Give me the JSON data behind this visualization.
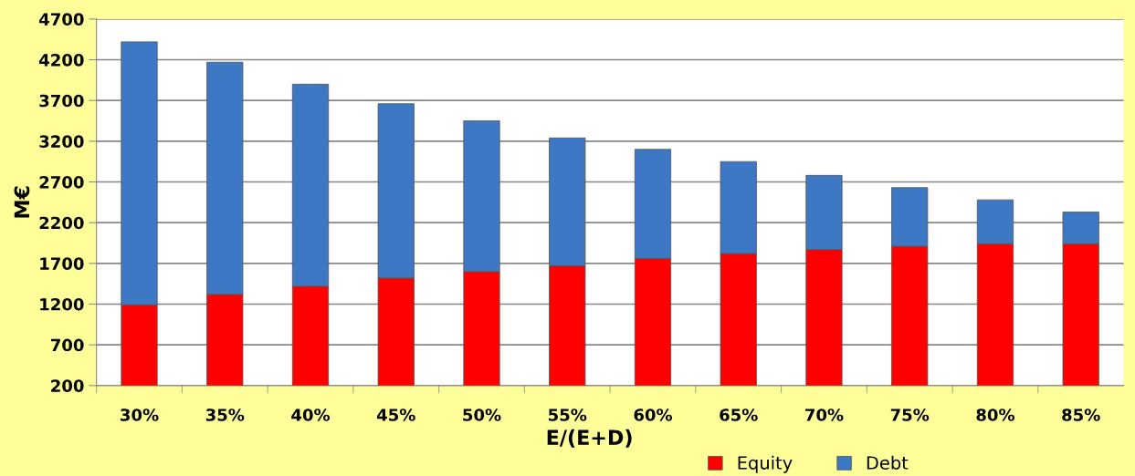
{
  "chart_data": {
    "type": "bar",
    "stacked": true,
    "xlabel": "E/(E+D)",
    "ylabel": "M€",
    "categories": [
      "30%",
      "35%",
      "40%",
      "45%",
      "50%",
      "55%",
      "60%",
      "65%",
      "70%",
      "75%",
      "80%",
      "85%"
    ],
    "series": [
      {
        "name": "Equity",
        "color": "#ff0000",
        "values": [
          1190,
          1320,
          1420,
          1520,
          1600,
          1670,
          1760,
          1820,
          1870,
          1910,
          1940,
          1940
        ]
      },
      {
        "name": "Debt",
        "color": "#3d78c4",
        "values": [
          3230,
          2850,
          2480,
          2140,
          1850,
          1570,
          1340,
          1130,
          910,
          720,
          540,
          390
        ]
      }
    ],
    "ylim": [
      200,
      4700
    ],
    "yticks": [
      200,
      700,
      1200,
      1700,
      2200,
      2700,
      3200,
      3700,
      4200,
      4700
    ],
    "grid": "y",
    "legend": "bottom"
  }
}
